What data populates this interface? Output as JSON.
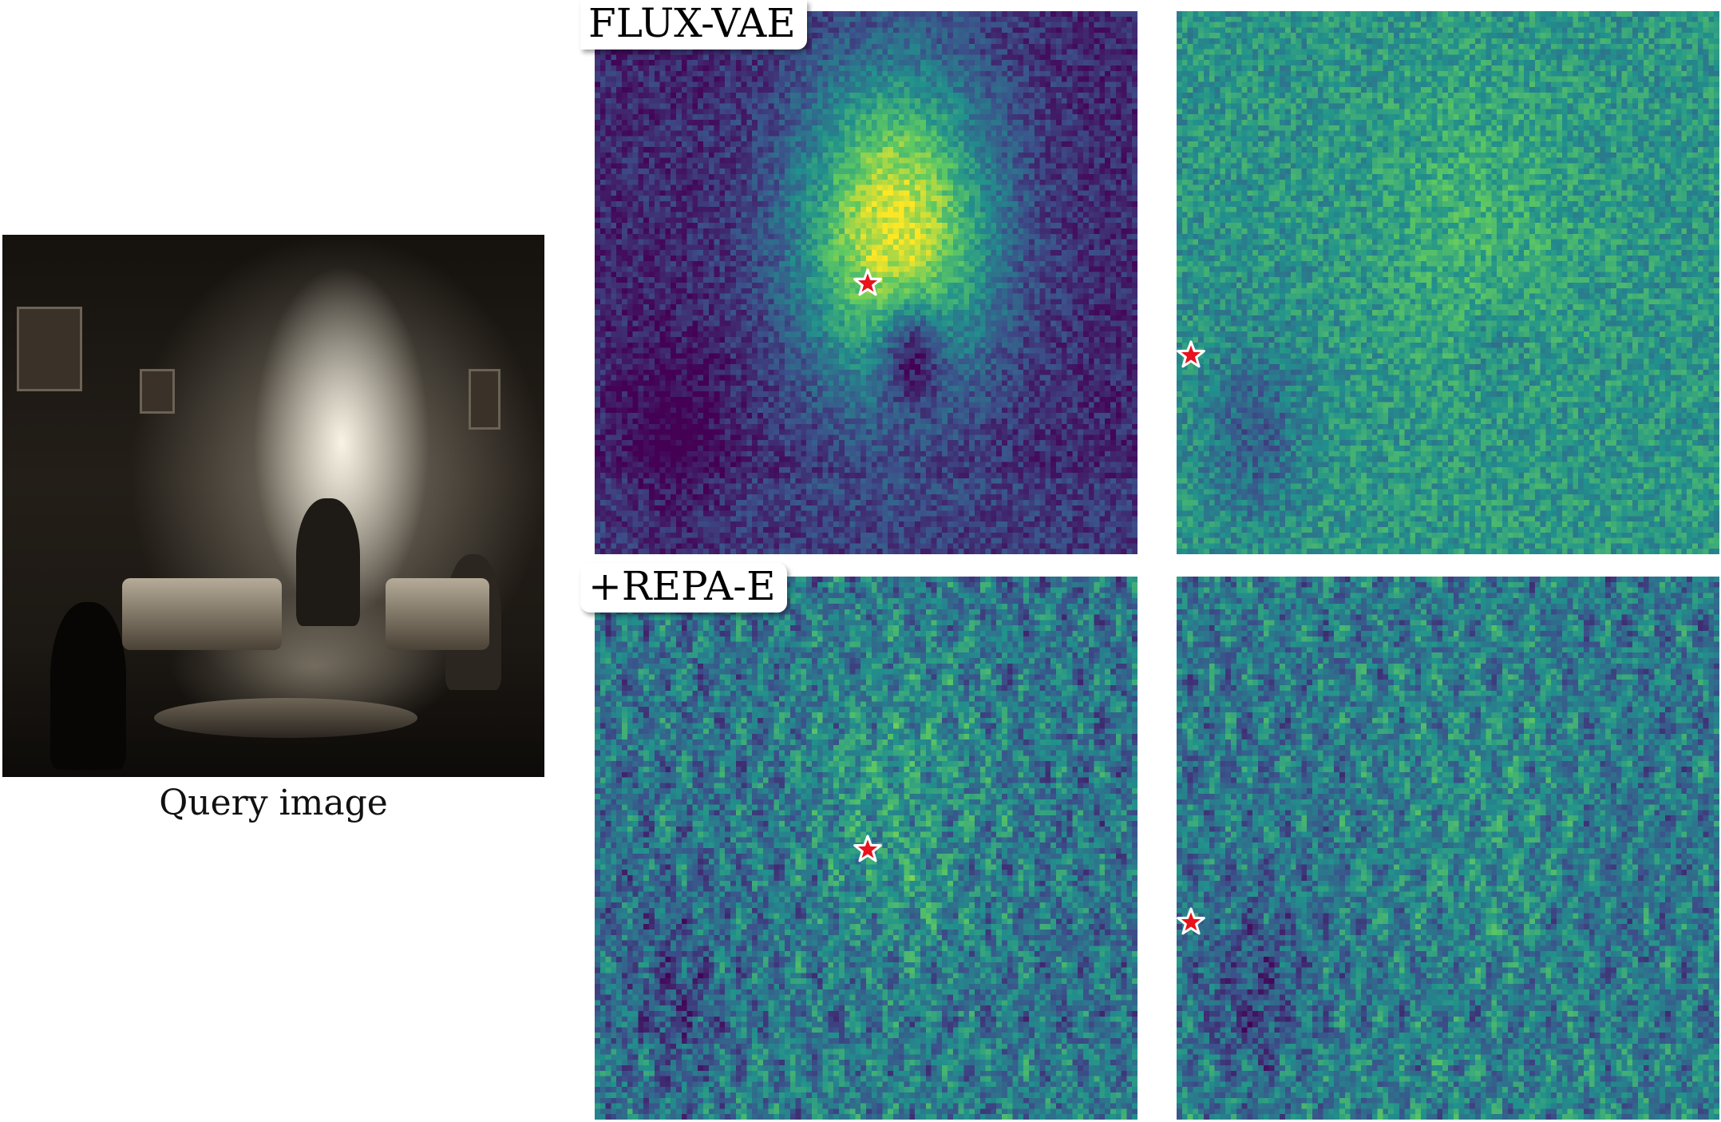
{
  "query": {
    "caption": "Query image"
  },
  "rows": [
    {
      "label": "FLUX-VAE"
    },
    {
      "label": "+REPA-E"
    }
  ],
  "colors": {
    "colormap": [
      "#440154",
      "#3b528b",
      "#21918c",
      "#5ec962",
      "#fde725"
    ],
    "star_fill": "#e8121c",
    "star_stroke": "#ffffff"
  }
}
